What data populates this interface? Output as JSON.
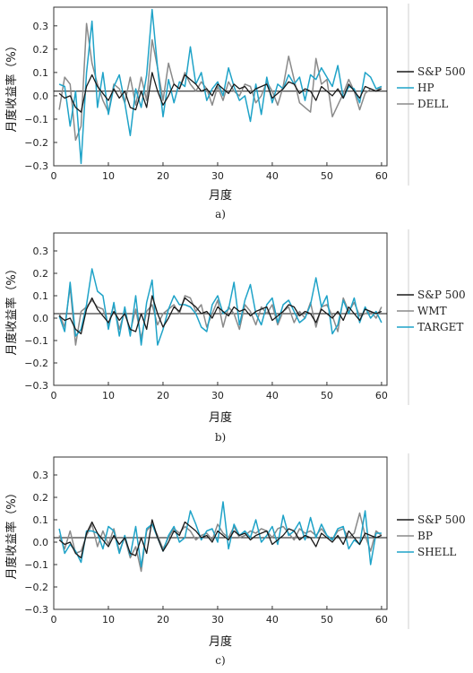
{
  "colors": {
    "black": "#1a1a1a",
    "gray": "#8a8a8a",
    "blue": "#1fa3c8"
  },
  "chart_data": [
    {
      "type": "line",
      "panel_label": "a)",
      "xlabel": "月度",
      "ylabel": "月度收益率（%）",
      "xticks": [
        0,
        10,
        20,
        30,
        40,
        50,
        60
      ],
      "yticks": [
        -0.3,
        -0.2,
        -0.1,
        0.0,
        0.1,
        0.2,
        0.3
      ],
      "yticklabels": [
        "−0.3",
        "−0.2",
        "−0.1",
        "0.0",
        "0.1",
        "0.2",
        "0.3"
      ],
      "xlim": [
        0,
        61
      ],
      "ylim": [
        -0.3,
        0.38
      ],
      "legend_position": "right",
      "x": [
        1,
        2,
        3,
        4,
        5,
        6,
        7,
        8,
        9,
        10,
        11,
        12,
        13,
        14,
        15,
        16,
        17,
        18,
        19,
        20,
        21,
        22,
        23,
        24,
        25,
        26,
        27,
        28,
        29,
        30,
        31,
        32,
        33,
        34,
        35,
        36,
        37,
        38,
        39,
        40,
        41,
        42,
        43,
        44,
        45,
        46,
        47,
        48,
        49,
        50,
        51,
        52,
        53,
        54,
        55,
        56,
        57,
        58,
        59,
        60
      ],
      "series": [
        {
          "name": "S&P 500",
          "color": "black",
          "values": [
            0.01,
            -0.01,
            0.0,
            -0.05,
            -0.07,
            0.04,
            0.09,
            0.04,
            0.01,
            -0.02,
            0.03,
            -0.01,
            0.02,
            -0.05,
            -0.06,
            0.02,
            -0.05,
            0.1,
            0.02,
            -0.04,
            0.0,
            0.05,
            0.03,
            0.09,
            0.07,
            0.05,
            0.02,
            0.03,
            0.0,
            0.05,
            0.03,
            0.01,
            0.05,
            0.03,
            0.04,
            0.01,
            0.03,
            0.04,
            0.05,
            -0.01,
            0.01,
            0.03,
            0.06,
            0.05,
            0.01,
            0.03,
            0.02,
            -0.02,
            0.04,
            0.02,
            0.0,
            0.03,
            -0.01,
            0.05,
            0.02,
            -0.01,
            0.04,
            0.03,
            0.02,
            0.03
          ]
        },
        {
          "name": "HP",
          "color": "blue",
          "values": [
            0.05,
            0.04,
            -0.13,
            0.02,
            -0.29,
            0.1,
            0.32,
            -0.05,
            0.1,
            -0.08,
            0.04,
            0.09,
            -0.03,
            -0.17,
            0.03,
            -0.05,
            0.09,
            0.37,
            0.12,
            -0.09,
            0.07,
            -0.03,
            0.06,
            0.04,
            0.21,
            0.05,
            0.1,
            -0.02,
            0.03,
            0.06,
            0.0,
            0.12,
            0.04,
            -0.02,
            0.0,
            -0.11,
            0.05,
            -0.08,
            0.08,
            -0.03,
            0.05,
            0.03,
            0.09,
            0.05,
            0.08,
            -0.02,
            0.09,
            0.07,
            0.12,
            0.08,
            0.04,
            0.13,
            -0.01,
            0.04,
            0.03,
            -0.03,
            0.1,
            0.08,
            0.03,
            0.04
          ]
        },
        {
          "name": "DELL",
          "color": "gray",
          "values": [
            -0.06,
            0.08,
            0.05,
            -0.19,
            -0.13,
            0.31,
            0.14,
            0.05,
            -0.02,
            -0.07,
            0.05,
            0.03,
            -0.03,
            0.08,
            -0.04,
            0.08,
            -0.02,
            0.24,
            0.12,
            -0.02,
            0.14,
            0.05,
            0.03,
            0.1,
            0.05,
            0.02,
            0.06,
            0.03,
            -0.04,
            0.04,
            -0.02,
            0.06,
            0.02,
            0.0,
            0.05,
            0.04,
            -0.03,
            0.0,
            0.06,
            0.02,
            -0.04,
            0.04,
            0.17,
            0.07,
            -0.03,
            -0.05,
            -0.07,
            0.16,
            0.05,
            0.07,
            -0.09,
            -0.04,
            0.01,
            0.07,
            0.02,
            -0.06,
            0.01,
            0.03,
            0.02,
            0.04
          ]
        }
      ]
    },
    {
      "type": "line",
      "panel_label": "b)",
      "xlabel": "月度",
      "ylabel": "月度收益率（%）",
      "xticks": [
        0,
        10,
        20,
        30,
        40,
        50,
        60
      ],
      "yticks": [
        -0.3,
        -0.2,
        -0.1,
        0.0,
        0.1,
        0.2,
        0.3
      ],
      "yticklabels": [
        "−0.3",
        "−0.2",
        "−0.1",
        "0.0",
        "0.1",
        "0.2",
        "0.3"
      ],
      "xlim": [
        0,
        61
      ],
      "ylim": [
        -0.3,
        0.38
      ],
      "legend_position": "right",
      "x": [
        1,
        2,
        3,
        4,
        5,
        6,
        7,
        8,
        9,
        10,
        11,
        12,
        13,
        14,
        15,
        16,
        17,
        18,
        19,
        20,
        21,
        22,
        23,
        24,
        25,
        26,
        27,
        28,
        29,
        30,
        31,
        32,
        33,
        34,
        35,
        36,
        37,
        38,
        39,
        40,
        41,
        42,
        43,
        44,
        45,
        46,
        47,
        48,
        49,
        50,
        51,
        52,
        53,
        54,
        55,
        56,
        57,
        58,
        59,
        60
      ],
      "series": [
        {
          "name": "S&P 500",
          "color": "black",
          "values": [
            0.01,
            -0.01,
            0.0,
            -0.05,
            -0.07,
            0.04,
            0.09,
            0.04,
            0.01,
            -0.02,
            0.03,
            -0.01,
            0.02,
            -0.05,
            -0.06,
            0.02,
            -0.05,
            0.1,
            0.02,
            -0.04,
            0.0,
            0.05,
            0.03,
            0.09,
            0.07,
            0.05,
            0.02,
            0.03,
            0.0,
            0.05,
            0.03,
            0.01,
            0.05,
            0.03,
            0.04,
            0.01,
            0.03,
            0.04,
            0.05,
            -0.01,
            0.01,
            0.03,
            0.06,
            0.05,
            0.01,
            0.03,
            0.02,
            -0.02,
            0.04,
            0.02,
            0.0,
            0.03,
            -0.01,
            0.05,
            0.02,
            -0.01,
            0.04,
            0.03,
            0.02,
            0.03
          ]
        },
        {
          "name": "WMT",
          "color": "gray",
          "values": [
            0.02,
            -0.04,
            0.14,
            -0.12,
            0.03,
            0.05,
            0.08,
            0.05,
            0.04,
            -0.03,
            0.06,
            -0.05,
            0.03,
            -0.06,
            0.04,
            -0.09,
            0.03,
            0.06,
            -0.03,
            0.02,
            0.04,
            0.06,
            0.02,
            0.1,
            0.09,
            0.03,
            0.06,
            -0.04,
            0.02,
            0.08,
            -0.04,
            0.05,
            0.02,
            -0.05,
            0.06,
            0.03,
            -0.03,
            0.05,
            0.02,
            0.06,
            -0.03,
            0.03,
            0.05,
            -0.02,
            0.03,
            0.0,
            0.07,
            -0.04,
            0.05,
            0.06,
            0.01,
            -0.06,
            0.09,
            0.03,
            0.07,
            0.01,
            0.02,
            0.03,
            0.0,
            0.05
          ]
        },
        {
          "name": "TARGET",
          "color": "blue",
          "values": [
            0.01,
            -0.06,
            0.16,
            -0.08,
            -0.05,
            0.06,
            0.22,
            0.12,
            0.1,
            -0.05,
            0.07,
            -0.08,
            0.05,
            -0.08,
            0.1,
            -0.12,
            0.07,
            0.17,
            -0.12,
            -0.05,
            0.04,
            0.1,
            0.06,
            0.06,
            0.05,
            0.02,
            -0.04,
            -0.06,
            0.06,
            0.1,
            0.02,
            0.04,
            0.16,
            -0.03,
            0.08,
            0.15,
            0.02,
            -0.03,
            0.06,
            0.09,
            -0.02,
            0.06,
            0.08,
            0.03,
            -0.02,
            0.0,
            0.06,
            0.18,
            0.05,
            0.1,
            -0.07,
            -0.03,
            0.08,
            0.02,
            0.09,
            -0.02,
            0.05,
            0.0,
            0.03,
            -0.02
          ]
        }
      ]
    },
    {
      "type": "line",
      "panel_label": "c)",
      "xlabel": "月度",
      "ylabel": "月度收益率（%）",
      "xticks": [
        0,
        10,
        20,
        30,
        40,
        50,
        60
      ],
      "yticks": [
        -0.3,
        -0.2,
        -0.1,
        0.0,
        0.1,
        0.2,
        0.3
      ],
      "yticklabels": [
        "−0.3",
        "−0.2",
        "−0.1",
        "0.0",
        "0.1",
        "0.2",
        "0.3"
      ],
      "xlim": [
        0,
        61
      ],
      "ylim": [
        -0.3,
        0.38
      ],
      "legend_position": "right",
      "x": [
        1,
        2,
        3,
        4,
        5,
        6,
        7,
        8,
        9,
        10,
        11,
        12,
        13,
        14,
        15,
        16,
        17,
        18,
        19,
        20,
        21,
        22,
        23,
        24,
        25,
        26,
        27,
        28,
        29,
        30,
        31,
        32,
        33,
        34,
        35,
        36,
        37,
        38,
        39,
        40,
        41,
        42,
        43,
        44,
        45,
        46,
        47,
        48,
        49,
        50,
        51,
        52,
        53,
        54,
        55,
        56,
        57,
        58,
        59,
        60
      ],
      "series": [
        {
          "name": "S&P 500",
          "color": "black",
          "values": [
            0.01,
            -0.01,
            0.0,
            -0.05,
            -0.07,
            0.04,
            0.09,
            0.04,
            0.01,
            -0.02,
            0.03,
            -0.01,
            0.02,
            -0.05,
            -0.06,
            0.02,
            -0.05,
            0.1,
            0.02,
            -0.04,
            0.0,
            0.05,
            0.03,
            0.09,
            0.07,
            0.05,
            0.02,
            0.03,
            0.0,
            0.05,
            0.03,
            0.01,
            0.05,
            0.03,
            0.04,
            0.01,
            0.03,
            0.04,
            0.05,
            -0.01,
            0.01,
            0.03,
            0.06,
            0.05,
            0.01,
            0.03,
            0.02,
            -0.02,
            0.04,
            0.02,
            0.0,
            0.03,
            -0.01,
            0.05,
            0.02,
            -0.01,
            0.04,
            0.03,
            0.02,
            0.03
          ]
        },
        {
          "name": "BP",
          "color": "gray",
          "values": [
            0.03,
            -0.03,
            0.05,
            -0.05,
            -0.04,
            0.03,
            0.08,
            -0.02,
            0.05,
            -0.01,
            0.06,
            -0.04,
            0.02,
            -0.07,
            -0.02,
            -0.13,
            0.05,
            0.08,
            0.03,
            -0.03,
            0.02,
            0.06,
            0.04,
            0.07,
            0.05,
            0.01,
            0.03,
            0.04,
            0.01,
            0.08,
            0.04,
            0.02,
            0.07,
            0.02,
            0.03,
            0.05,
            0.04,
            0.06,
            0.05,
            0.02,
            0.06,
            0.07,
            0.04,
            0.01,
            0.06,
            0.04,
            0.05,
            0.03,
            0.06,
            0.03,
            0.01,
            0.05,
            0.06,
            0.02,
            0.04,
            0.13,
            0.03,
            -0.04,
            0.05,
            0.03
          ]
        },
        {
          "name": "SHELL",
          "color": "blue",
          "values": [
            0.06,
            -0.05,
            -0.01,
            -0.04,
            -0.09,
            0.05,
            0.05,
            0.04,
            -0.03,
            0.07,
            0.05,
            -0.05,
            0.03,
            -0.06,
            0.07,
            -0.11,
            0.06,
            0.08,
            0.02,
            -0.04,
            0.03,
            0.07,
            0.0,
            0.02,
            0.14,
            0.08,
            0.01,
            0.05,
            0.06,
            0.0,
            0.18,
            -0.03,
            0.08,
            0.03,
            0.05,
            0.02,
            0.1,
            0.0,
            0.03,
            0.07,
            -0.01,
            0.12,
            0.03,
            0.05,
            0.09,
            0.01,
            0.11,
            0.02,
            0.08,
            0.03,
            0.01,
            0.06,
            0.07,
            -0.03,
            0.01,
            -0.01,
            0.14,
            -0.1,
            0.04,
            0.04
          ]
        }
      ]
    }
  ]
}
